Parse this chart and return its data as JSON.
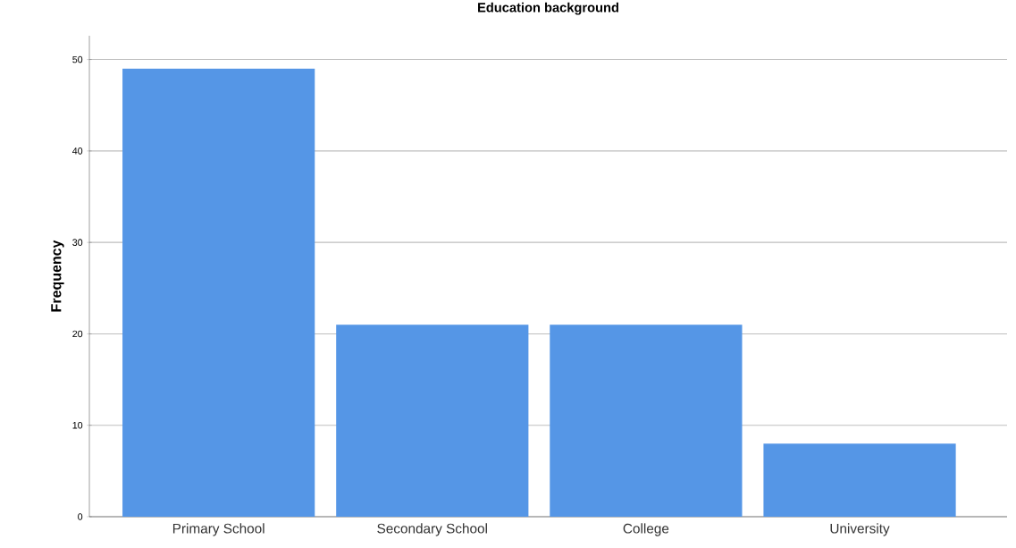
{
  "chart_data": {
    "type": "bar",
    "title": "Education background",
    "ylabel": "Frequency",
    "categories": [
      "Primary School",
      "Secondary School",
      "College",
      "University"
    ],
    "values": [
      49,
      21,
      21,
      8
    ],
    "color": "#5596e6",
    "ylim": [
      0,
      52.6
    ],
    "yticks": [
      0,
      10,
      20,
      30,
      40,
      50
    ],
    "grid": "y"
  }
}
